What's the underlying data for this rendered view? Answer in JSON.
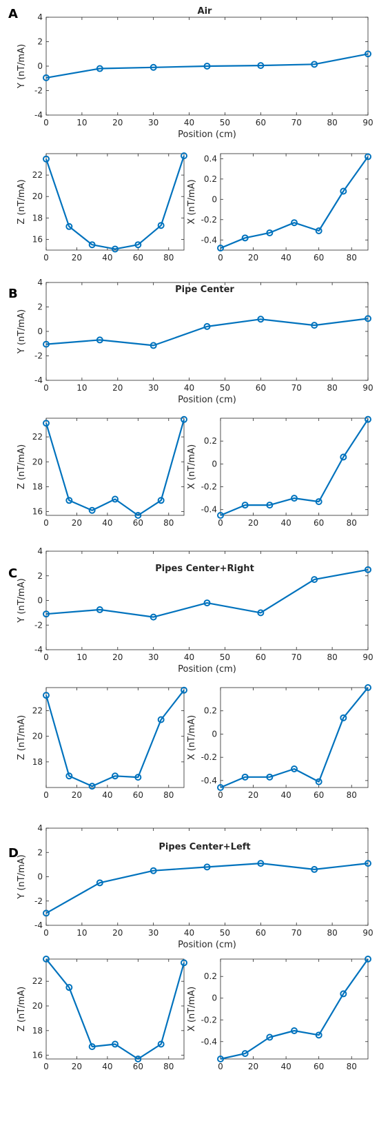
{
  "theme": {
    "series_color": "#0072BD"
  },
  "panels": [
    {
      "letter": "A",
      "title": "Air"
    },
    {
      "letter": "B",
      "title": "Pipe Center"
    },
    {
      "letter": "C",
      "title": "Pipes Center+Right"
    },
    {
      "letter": "D",
      "title": "Pipes Center+Left"
    }
  ],
  "chart_data": [
    {
      "panel": "A",
      "component": "Y",
      "type": "line",
      "title": "Air",
      "xlabel": "Position (cm)",
      "ylabel": "Y (nT/mA)",
      "xlim": [
        0,
        90
      ],
      "ylim": [
        -4,
        4
      ],
      "xticks": [
        0,
        10,
        20,
        30,
        40,
        50,
        60,
        70,
        80,
        90
      ],
      "yticks": [
        -4,
        -2,
        0,
        2,
        4
      ],
      "x": [
        0,
        15,
        30,
        45,
        60,
        75,
        90
      ],
      "values": [
        -0.95,
        -0.2,
        -0.1,
        0.0,
        0.05,
        0.15,
        1.0
      ]
    },
    {
      "panel": "A",
      "component": "Z",
      "type": "line",
      "title": "",
      "xlabel": "",
      "ylabel": "Z (nT/mA)",
      "xlim": [
        0,
        90
      ],
      "ylim": [
        15,
        24
      ],
      "xticks": [
        0,
        20,
        40,
        60,
        80
      ],
      "yticks": [
        16,
        18,
        20,
        22
      ],
      "x": [
        0,
        15,
        30,
        45,
        60,
        75,
        90
      ],
      "values": [
        23.5,
        17.2,
        15.5,
        15.1,
        15.5,
        17.3,
        23.8
      ]
    },
    {
      "panel": "A",
      "component": "X",
      "type": "line",
      "title": "",
      "xlabel": "",
      "ylabel": "X (nT/mA)",
      "xlim": [
        0,
        90
      ],
      "ylim": [
        -0.5,
        0.45
      ],
      "xticks": [
        0,
        20,
        40,
        60,
        80
      ],
      "yticks": [
        -0.4,
        -0.2,
        0,
        0.2,
        0.4
      ],
      "ytick_labels": [
        "-0.4",
        "-0.2",
        "0",
        "0.2",
        "0.4"
      ],
      "x": [
        0,
        15,
        30,
        45,
        60,
        75,
        90
      ],
      "values": [
        -0.48,
        -0.38,
        -0.33,
        -0.23,
        -0.31,
        0.08,
        0.42
      ]
    },
    {
      "panel": "B",
      "component": "Y",
      "type": "line",
      "title": "Pipe Center",
      "xlabel": "Position (cm)",
      "ylabel": "Y (nT/mA)",
      "xlim": [
        0,
        90
      ],
      "ylim": [
        -4,
        4
      ],
      "xticks": [
        0,
        10,
        20,
        30,
        40,
        50,
        60,
        70,
        80,
        90
      ],
      "yticks": [
        -4,
        -2,
        0,
        2,
        4
      ],
      "x": [
        0,
        15,
        30,
        45,
        60,
        75,
        90
      ],
      "values": [
        -1.05,
        -0.7,
        -1.15,
        0.4,
        1.0,
        0.5,
        1.05
      ]
    },
    {
      "panel": "B",
      "component": "Z",
      "type": "line",
      "title": "",
      "xlabel": "",
      "ylabel": "Z (nT/mA)",
      "xlim": [
        0,
        90
      ],
      "ylim": [
        15.7,
        23.5
      ],
      "xticks": [
        0,
        20,
        40,
        60,
        80
      ],
      "yticks": [
        16,
        18,
        20,
        22
      ],
      "x": [
        0,
        15,
        30,
        45,
        60,
        75,
        90
      ],
      "values": [
        23.1,
        16.9,
        16.1,
        17.0,
        15.7,
        16.9,
        23.4
      ]
    },
    {
      "panel": "B",
      "component": "X",
      "type": "line",
      "title": "",
      "xlabel": "",
      "ylabel": "X (nT/mA)",
      "xlim": [
        0,
        90
      ],
      "ylim": [
        -0.45,
        0.4
      ],
      "xticks": [
        0,
        20,
        40,
        60,
        80
      ],
      "yticks": [
        -0.4,
        -0.2,
        0,
        0.2
      ],
      "ytick_labels": [
        "-0.4",
        "-0.2",
        "0",
        "0.2"
      ],
      "x": [
        0,
        15,
        30,
        45,
        60,
        75,
        90
      ],
      "values": [
        -0.45,
        -0.36,
        -0.36,
        -0.3,
        -0.33,
        0.06,
        0.39
      ]
    },
    {
      "panel": "C",
      "component": "Y",
      "type": "line",
      "title": "Pipes Center+Right",
      "xlabel": "Position (cm)",
      "ylabel": "Y (nT/mA)",
      "xlim": [
        0,
        90
      ],
      "ylim": [
        -4,
        4
      ],
      "xticks": [
        0,
        10,
        20,
        30,
        40,
        50,
        60,
        70,
        80,
        90
      ],
      "yticks": [
        -4,
        -2,
        0,
        2,
        4
      ],
      "x": [
        0,
        15,
        30,
        45,
        60,
        75,
        90
      ],
      "values": [
        -1.1,
        -0.75,
        -1.35,
        -0.2,
        -1.0,
        1.7,
        2.5
      ]
    },
    {
      "panel": "C",
      "component": "Z",
      "type": "line",
      "title": "",
      "xlabel": "",
      "ylabel": "Z (nT/mA)",
      "xlim": [
        0,
        90
      ],
      "ylim": [
        16,
        23.8
      ],
      "xticks": [
        0,
        20,
        40,
        60,
        80
      ],
      "yticks": [
        18,
        20,
        22
      ],
      "x": [
        0,
        15,
        30,
        45,
        60,
        75,
        90
      ],
      "values": [
        23.2,
        16.9,
        16.1,
        16.9,
        16.8,
        21.3,
        23.6
      ]
    },
    {
      "panel": "C",
      "component": "X",
      "type": "line",
      "title": "",
      "xlabel": "",
      "ylabel": "X (nT/mA)",
      "xlim": [
        0,
        90
      ],
      "ylim": [
        -0.46,
        0.4
      ],
      "xticks": [
        0,
        20,
        40,
        60,
        80
      ],
      "yticks": [
        -0.4,
        -0.2,
        0,
        0.2
      ],
      "ytick_labels": [
        "-0.4",
        "-0.2",
        "0",
        "0.2"
      ],
      "x": [
        0,
        15,
        30,
        45,
        60,
        75,
        90
      ],
      "values": [
        -0.46,
        -0.37,
        -0.37,
        -0.3,
        -0.41,
        0.14,
        0.4
      ]
    },
    {
      "panel": "D",
      "component": "Y",
      "type": "line",
      "title": "Pipes Center+Left",
      "xlabel": "Position (cm)",
      "ylabel": "Y (nT/mA)",
      "xlim": [
        0,
        90
      ],
      "ylim": [
        -4,
        4
      ],
      "xticks": [
        0,
        10,
        20,
        30,
        40,
        50,
        60,
        70,
        80,
        90
      ],
      "yticks": [
        -4,
        -2,
        0,
        2,
        4
      ],
      "x": [
        0,
        15,
        30,
        45,
        60,
        75,
        90
      ],
      "values": [
        -3.0,
        -0.5,
        0.5,
        0.8,
        1.1,
        0.6,
        1.1
      ]
    },
    {
      "panel": "D",
      "component": "Z",
      "type": "line",
      "title": "",
      "xlabel": "",
      "ylabel": "Z (nT/mA)",
      "xlim": [
        0,
        90
      ],
      "ylim": [
        15.7,
        23.8
      ],
      "xticks": [
        0,
        20,
        40,
        60,
        80
      ],
      "yticks": [
        16,
        18,
        20,
        22
      ],
      "x": [
        0,
        15,
        30,
        45,
        60,
        75,
        90
      ],
      "values": [
        23.8,
        21.5,
        16.7,
        16.9,
        15.7,
        16.9,
        23.5
      ]
    },
    {
      "panel": "D",
      "component": "X",
      "type": "line",
      "title": "",
      "xlabel": "",
      "ylabel": "X (nT/mA)",
      "xlim": [
        0,
        90
      ],
      "ylim": [
        -0.56,
        0.36
      ],
      "xticks": [
        0,
        20,
        40,
        60,
        80
      ],
      "yticks": [
        -0.4,
        -0.2,
        0,
        0.2
      ],
      "ytick_labels": [
        "-0.4",
        "-0.2",
        "0",
        "0.2"
      ],
      "x": [
        0,
        15,
        30,
        45,
        60,
        75,
        90
      ],
      "values": [
        -0.56,
        -0.51,
        -0.36,
        -0.3,
        -0.34,
        0.04,
        0.36
      ]
    }
  ]
}
